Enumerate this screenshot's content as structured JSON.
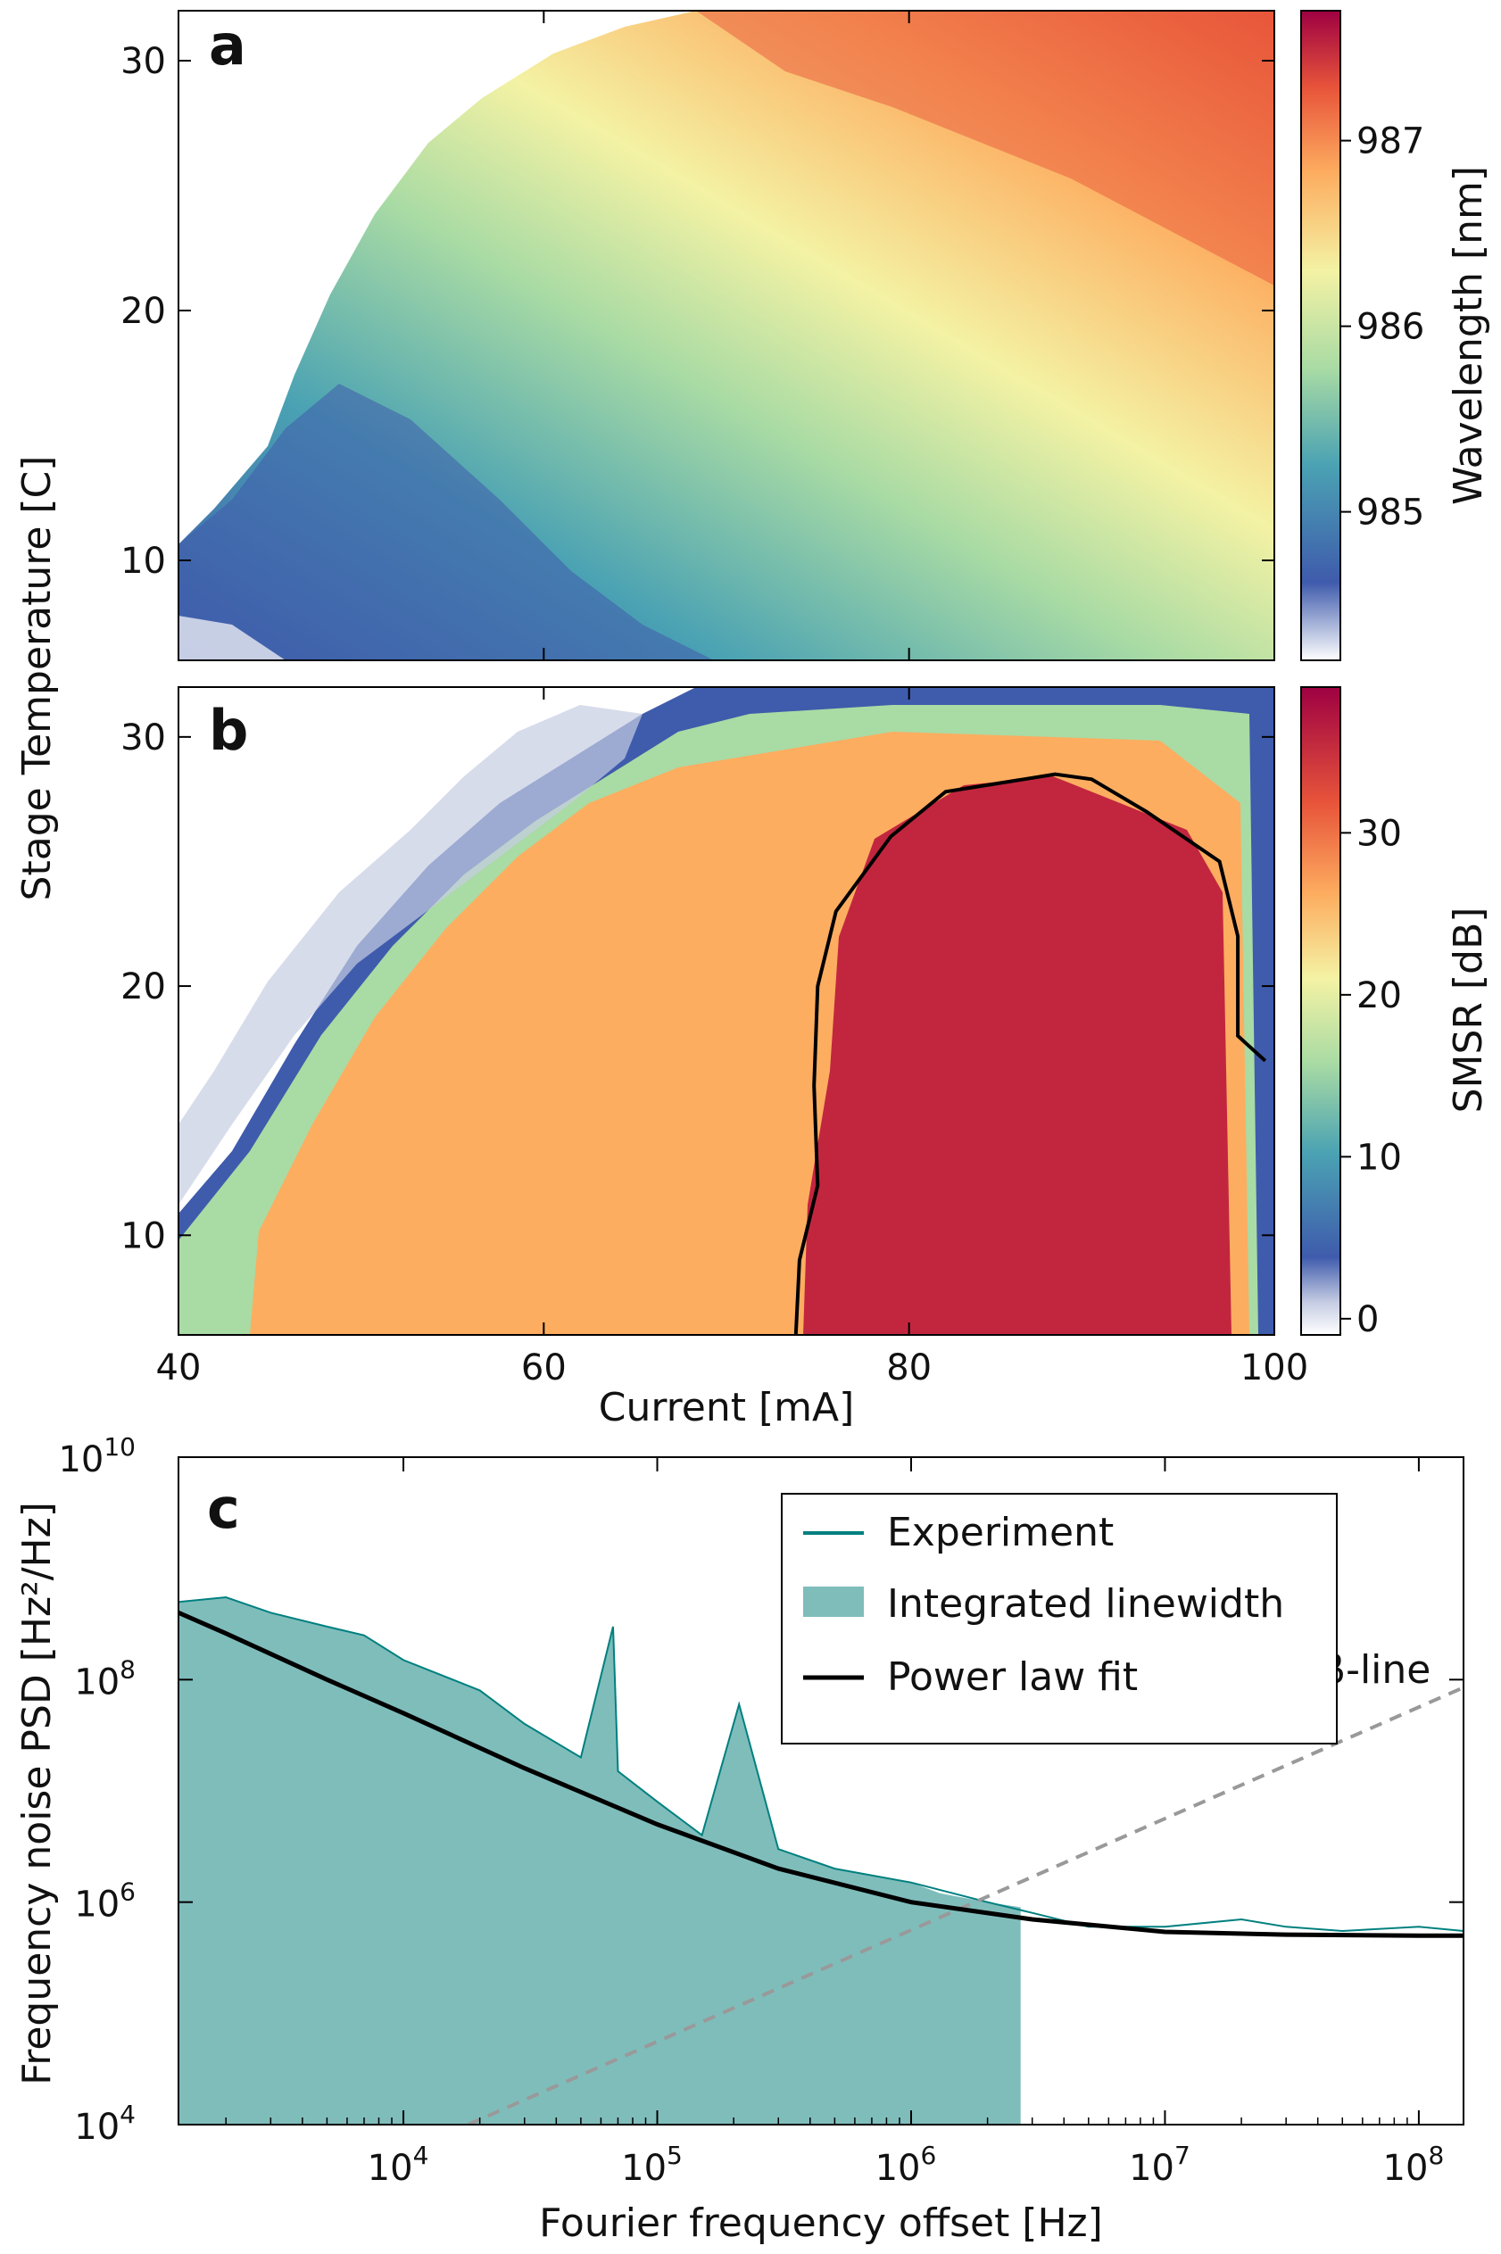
{
  "chart_data": [
    {
      "panel": "a",
      "type": "heatmap",
      "panel_label": "a",
      "xlim": [
        40,
        100
      ],
      "ylim": [
        6,
        32
      ],
      "x_ticks": [
        "40",
        "60",
        "80",
        "100"
      ],
      "y_ticks": [
        "10",
        "20",
        "30"
      ],
      "ylabel": "Stage Temperature [C]",
      "colorbar": {
        "label": "Wavelength [nm]",
        "range": [
          984.2,
          987.7
        ],
        "ticks": [
          "985",
          "986",
          "987"
        ],
        "colormap": [
          "#ffffff",
          "#3f5bac",
          "#5aa2b0",
          "#a8dba4",
          "#f2f0a0",
          "#fdae61",
          "#e8553a",
          "#9e0142"
        ]
      },
      "data_rows": {
        "x": [
          40,
          50,
          60,
          70,
          75,
          80,
          90,
          100
        ],
        "y": [
          6,
          10,
          15,
          20,
          25,
          32
        ],
        "z": [
          [
            984.3,
            984.8,
            985.1,
            985.3,
            985.5,
            985.8,
            986.0,
            986.2
          ],
          [
            984.6,
            985.0,
            985.3,
            985.5,
            985.8,
            986.0,
            986.3,
            986.5
          ],
          [
            null,
            985.2,
            985.5,
            985.8,
            986.1,
            986.3,
            986.6,
            986.8
          ],
          [
            null,
            985.6,
            985.9,
            986.1,
            986.5,
            986.7,
            986.9,
            987.1
          ],
          [
            null,
            null,
            986.1,
            986.4,
            986.8,
            987.0,
            987.2,
            987.3
          ],
          [
            null,
            null,
            null,
            986.6,
            987.0,
            987.2,
            987.4,
            987.6
          ]
        ]
      },
      "colors": {
        "low": "#3f5bac",
        "mid": "#f5f4a6",
        "high": "#d0334b"
      }
    },
    {
      "panel": "b",
      "type": "heatmap",
      "panel_label": "b",
      "xlim": [
        40,
        100
      ],
      "ylim": [
        6,
        32
      ],
      "x_ticks": [
        "40",
        "60",
        "80",
        "100"
      ],
      "y_ticks": [
        "10",
        "20",
        "30"
      ],
      "xlabel": "Current [mA]",
      "ylabel": "Stage Temperature [C]",
      "colorbar": {
        "label": "SMSR [dB]",
        "range": [
          -1,
          39
        ],
        "ticks": [
          "0",
          "10",
          "20",
          "30"
        ]
      },
      "data_rows": {
        "x": [
          40,
          45,
          50,
          60,
          70,
          75,
          80,
          90,
          100
        ],
        "y": [
          6,
          10,
          15,
          20,
          25,
          30,
          32
        ],
        "z": [
          [
            8,
            18,
            28,
            26,
            26,
            30,
            37,
            37,
            37
          ],
          [
            5,
            18,
            25,
            24,
            25,
            30,
            37,
            37,
            36
          ],
          [
            null,
            10,
            22,
            23,
            24,
            30,
            37,
            37,
            36
          ],
          [
            null,
            4,
            16,
            20,
            23,
            27,
            37,
            37,
            30
          ],
          [
            null,
            null,
            5,
            12,
            20,
            25,
            34,
            35,
            20
          ],
          [
            null,
            null,
            null,
            2,
            8,
            15,
            18,
            18,
            5
          ],
          [
            null,
            null,
            null,
            null,
            5,
            10,
            12,
            12,
            4
          ]
        ]
      },
      "contour_35dB": {
        "note": "black contour enclosing high-SMSR region",
        "points": [
          [
            73.8,
            6
          ],
          [
            74,
            9
          ],
          [
            75,
            12
          ],
          [
            74.8,
            16
          ],
          [
            75,
            20
          ],
          [
            76,
            23
          ],
          [
            79,
            26
          ],
          [
            82,
            27.8
          ],
          [
            88,
            28.5
          ],
          [
            90,
            28.3
          ],
          [
            93,
            27
          ],
          [
            97,
            25
          ],
          [
            98,
            22
          ],
          [
            98,
            18
          ],
          [
            99.5,
            17
          ]
        ]
      }
    },
    {
      "panel": "c",
      "type": "line",
      "panel_label": "c",
      "xlabel": "Fourier frequency offset [Hz]",
      "ylabel": "Frequency noise PSD [Hz²/Hz]",
      "x_scale": "log",
      "y_scale": "log",
      "xlim": [
        1300,
        150000000
      ],
      "ylim": [
        10000,
        10000000000
      ],
      "x_ticks": [
        {
          "base": "10",
          "exp": "4"
        },
        {
          "base": "10",
          "exp": "5"
        },
        {
          "base": "10",
          "exp": "6"
        },
        {
          "base": "10",
          "exp": "7"
        },
        {
          "base": "10",
          "exp": "8"
        }
      ],
      "y_ticks": [
        {
          "base": "10",
          "exp": "4"
        },
        {
          "base": "10",
          "exp": "6"
        },
        {
          "base": "10",
          "exp": "8"
        },
        {
          "base": "10",
          "exp": "10"
        }
      ],
      "legend": {
        "placement": "top-right",
        "entries": [
          "Experiment",
          "Integrated linewidth",
          "Power law fit"
        ]
      },
      "annotation": "β-line",
      "series": [
        {
          "name": "Experiment",
          "color": "#00807f",
          "x": [
            1300,
            2000,
            3000,
            5000,
            7000,
            10000,
            20000,
            30000,
            50000,
            67000,
            70000,
            100000,
            150000,
            210000,
            300000,
            500000,
            1000000,
            2000000,
            3000000,
            5000000,
            10000000,
            20000000,
            30000000,
            50000000,
            100000000,
            150000000
          ],
          "y": [
            500000000,
            550000000,
            400000000,
            300000000,
            250000000,
            150000000,
            80000000,
            40000000,
            20000000,
            300000000,
            15000000,
            8000000,
            4000000,
            60000000,
            3000000,
            2000000,
            1500000,
            1000000,
            800000,
            600000,
            600000,
            700000,
            600000,
            550000,
            600000,
            550000
          ]
        },
        {
          "name": "Integrated linewidth",
          "color": "#7fbdbb",
          "x": [
            1300,
            2000,
            3000,
            5000,
            7000,
            10000,
            20000,
            30000,
            50000,
            67000,
            70000,
            100000,
            150000,
            210000,
            300000,
            500000,
            1000000,
            1300000,
            2000000,
            2700000
          ],
          "y": [
            500000000,
            550000000,
            400000000,
            300000000,
            250000000,
            150000000,
            80000000,
            40000000,
            20000000,
            300000000,
            15000000,
            8000000,
            4000000,
            60000000,
            3000000,
            2000000,
            1500000,
            1200000,
            1000000,
            900000
          ]
        },
        {
          "name": "Power law fit",
          "color": "#000000",
          "x": [
            1300,
            2000,
            5000,
            10000,
            30000,
            100000,
            300000,
            1000000,
            3000000,
            10000000,
            30000000,
            100000000,
            150000000
          ],
          "y": [
            400000000,
            260000000,
            100000000,
            50000000,
            16000000,
            5000000,
            2000000,
            1000000,
            700000,
            540000,
            510000,
            500000,
            500000
          ]
        },
        {
          "name": "β-line",
          "color": "#999999",
          "x": [
            18000,
            150000000
          ],
          "y": [
            10000,
            85000000
          ]
        }
      ]
    }
  ]
}
